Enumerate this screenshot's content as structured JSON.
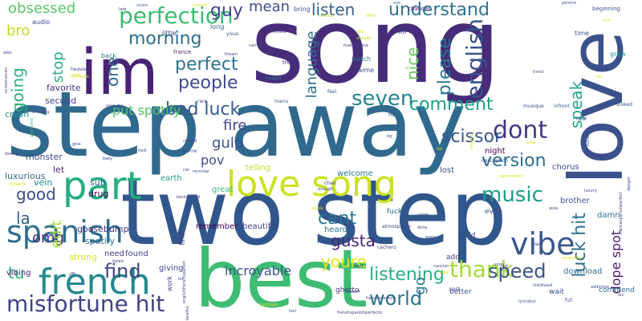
{
  "words": [
    {
      "text": "song",
      "color": "#472c7a",
      "weight": 200
    },
    {
      "text": "step away",
      "color": "#30698e",
      "weight": 150
    },
    {
      "text": "two step",
      "color": "#31568c",
      "weight": 150
    },
    {
      "text": "best",
      "color": "#3fbc73",
      "weight": 100
    },
    {
      "text": "love",
      "color": "#3b518b",
      "weight": 100
    },
    {
      "text": "im",
      "color": "#482374",
      "weight": 100
    },
    {
      "text": "love song",
      "color": "#cbe11e",
      "weight": 60
    },
    {
      "text": "part",
      "color": "#26ad81",
      "weight": 60
    },
    {
      "text": "french",
      "color": "#23888e",
      "weight": 50
    },
    {
      "text": "spanish",
      "color": "#2e6e8e",
      "weight": 45
    },
    {
      "text": "perfection",
      "color": "#3ebc74",
      "weight": 38
    },
    {
      "text": "vibe",
      "color": "#39558c",
      "weight": 42
    },
    {
      "text": "misfortune hit",
      "color": "#404387",
      "weight": 34
    },
    {
      "text": "seven",
      "color": "#24858e",
      "weight": 34
    },
    {
      "text": "dont",
      "color": "#443b84",
      "weight": 34
    },
    {
      "text": "music",
      "color": "#1e9c89",
      "weight": 30
    },
    {
      "text": "english",
      "color": "#3a538b",
      "weight": 28
    },
    {
      "text": "understand",
      "color": "#2d718e",
      "weight": 26
    },
    {
      "text": "listen",
      "color": "#35608d",
      "weight": 26
    },
    {
      "text": "bad luck",
      "color": "#365c8d",
      "weight": 28
    },
    {
      "text": "perfect",
      "color": "#2b748e",
      "weight": 26
    },
    {
      "text": "morning",
      "color": "#2d708e",
      "weight": 26
    },
    {
      "text": "people",
      "color": "#3e4989",
      "weight": 24
    },
    {
      "text": "listening",
      "color": "#29af7f",
      "weight": 26
    },
    {
      "text": "thank",
      "color": "#a2da37",
      "weight": 26
    },
    {
      "text": "world",
      "color": "#2c738e",
      "weight": 26
    },
    {
      "text": "find",
      "color": "#414487",
      "weight": 26
    },
    {
      "text": "speed",
      "color": "#3b528b",
      "weight": 26
    },
    {
      "text": "version",
      "color": "#2e6d8e",
      "weight": 24
    },
    {
      "text": "scissor",
      "color": "#38588c",
      "weight": 24
    },
    {
      "text": "comment",
      "color": "#1f9e89",
      "weight": 20
    },
    {
      "text": "please",
      "color": "#2a768e",
      "weight": 26
    },
    {
      "text": "luck hit",
      "color": "#2e6f8e",
      "weight": 24
    },
    {
      "text": "speak",
      "color": "#20a486",
      "weight": 20
    },
    {
      "text": "mean",
      "color": "#3c4f8a",
      "weight": 22
    },
    {
      "text": "guy",
      "color": "#3f4788",
      "weight": 22
    },
    {
      "text": "obsessed",
      "color": "#58c765",
      "weight": 20
    },
    {
      "text": "bro",
      "color": "#bddf26",
      "weight": 20
    },
    {
      "text": "going",
      "color": "#2ab07f",
      "weight": 22
    },
    {
      "text": "one",
      "color": "#31688e",
      "weight": 22
    },
    {
      "text": "stop",
      "color": "#2ab07f",
      "weight": 20
    },
    {
      "text": "nice",
      "color": "#6ccd5a",
      "weight": 22
    },
    {
      "text": "language",
      "color": "#2e6e8e",
      "weight": 18
    },
    {
      "text": "cant",
      "color": "#2a788e",
      "weight": 22
    },
    {
      "text": "gusta",
      "color": "#482677",
      "weight": 22
    },
    {
      "text": "youre",
      "color": "#e5e419",
      "weight": 22
    },
    {
      "text": "fire",
      "color": "#3e4a89",
      "weight": 20
    },
    {
      "text": "gulp",
      "color": "#3b518b",
      "weight": 20
    },
    {
      "text": "good",
      "color": "#3c4f8a",
      "weight": 20
    },
    {
      "text": "la",
      "color": "#355f8d",
      "weight": 20
    },
    {
      "text": "omg",
      "color": "#472d7b",
      "weight": 20
    },
    {
      "text": "tu",
      "color": "#2db27d",
      "weight": 22
    },
    {
      "text": "edit",
      "color": "#a5db36",
      "weight": 18
    },
    {
      "text": "pov",
      "color": "#3d4d8a",
      "weight": 18
    },
    {
      "text": "put spotify",
      "color": "#52c569",
      "weight": 16
    },
    {
      "text": "incroyable",
      "color": "#3b528b",
      "weight": 16
    },
    {
      "text": "dope spot",
      "color": "#481b6d",
      "weight": 16
    },
    {
      "text": "go",
      "color": "#2a788e",
      "weight": 18
    },
    {
      "text": "sub",
      "color": "#33638d",
      "weight": 11
    },
    {
      "text": "drug",
      "color": "#440154",
      "weight": 11
    },
    {
      "text": "favorite",
      "color": "#46327e",
      "weight": 11
    },
    {
      "text": "second",
      "color": "#414487",
      "weight": 11
    },
    {
      "text": "crush",
      "color": "#20938c",
      "weight": 11
    },
    {
      "text": "monster",
      "color": "#3f4889",
      "weight": 11
    },
    {
      "text": "let",
      "color": "#482878",
      "weight": 11
    },
    {
      "text": "vein",
      "color": "#238a8d",
      "weight": 11
    },
    {
      "text": "luxurious",
      "color": "#31678e",
      "weight": 11
    },
    {
      "text": "goosebump",
      "color": "#453581",
      "weight": 11
    },
    {
      "text": "spotify",
      "color": "#2d708e",
      "weight": 11
    },
    {
      "text": "strong",
      "color": "#d8e219",
      "weight": 11
    },
    {
      "text": "need",
      "color": "#453781",
      "weight": 10
    },
    {
      "text": "found",
      "color": "#414487",
      "weight": 10
    },
    {
      "text": "giving",
      "color": "#3f4788",
      "weight": 10
    },
    {
      "text": "vibing",
      "color": "#482576",
      "weight": 10
    },
    {
      "text": "earth",
      "color": "#1e9b8a",
      "weight": 10
    },
    {
      "text": "great",
      "color": "#35b779",
      "weight": 10
    },
    {
      "text": "remember",
      "color": "#440154",
      "weight": 10
    },
    {
      "text": "beautiful",
      "color": "#404387",
      "weight": 10
    },
    {
      "text": "heard",
      "color": "#2c718e",
      "weight": 10
    },
    {
      "text": "telling",
      "color": "#b5de2b",
      "weight": 10
    },
    {
      "text": "welcome",
      "color": "#2a788e",
      "weight": 10
    },
    {
      "text": "lost",
      "color": "#3b528b",
      "weight": 10
    },
    {
      "text": "night",
      "color": "#440154",
      "weight": 10
    },
    {
      "text": "chorus",
      "color": "#3e4989",
      "weight": 10
    },
    {
      "text": "brother",
      "color": "#39568c",
      "weight": 10
    },
    {
      "text": "damn",
      "color": "#2e6e8e",
      "weight": 10
    },
    {
      "text": "download",
      "color": "#30698e",
      "weight": 10
    },
    {
      "text": "commend",
      "color": "#2c728e",
      "weight": 9
    },
    {
      "text": "wait",
      "color": "#3e4989",
      "weight": 9
    },
    {
      "text": "better",
      "color": "#3b528b",
      "weight": 9
    },
    {
      "text": "fuck",
      "color": "#2a778e",
      "weight": 9
    },
    {
      "text": "sold",
      "color": "#3d4e8a",
      "weight": 9
    },
    {
      "text": "add",
      "color": "#433e85",
      "weight": 9
    },
    {
      "text": "even",
      "color": "#3c508b",
      "weight": 9
    },
    {
      "text": "ghetto",
      "color": "#46307e",
      "weight": 9
    },
    {
      "text": "link",
      "color": "#443a83",
      "weight": 9
    },
    {
      "text": "work",
      "color": "#433d84",
      "weight": 8
    },
    {
      "text": "time",
      "color": "#3b528b",
      "weight": 8
    },
    {
      "text": "grew",
      "color": "#218f8d",
      "weight": 8
    },
    {
      "text": "long",
      "color": "#33638d",
      "weight": 8
    },
    {
      "text": "audio",
      "color": "#404688",
      "weight": 8
    },
    {
      "text": "little",
      "color": "#3f4889",
      "weight": 8
    },
    {
      "text": "back",
      "color": "#2b748e",
      "weight": 8
    },
    {
      "text": "bring",
      "color": "#39558c",
      "weight": 8
    },
    {
      "text": "team",
      "color": "#2d708e",
      "weight": 8
    },
    {
      "text": "watch",
      "color": "#2d708e",
      "weight": 8
    },
    {
      "text": "jaime",
      "color": "#3e4989",
      "weight": 8
    },
    {
      "text": "channel",
      "color": "#472a7a",
      "weight": 7
    },
    {
      "text": "beginning",
      "color": "#3d4d8a",
      "weight": 7
    },
    {
      "text": "france",
      "color": "#482173",
      "weight": 7
    },
    {
      "text": "trop",
      "color": "#443983",
      "weight": 7
    },
    {
      "text": "hour",
      "color": "#31688e",
      "weight": 7
    },
    {
      "text": "tune",
      "color": "#3e4989",
      "weight": 6
    },
    {
      "text": "hear",
      "color": "#3f4788",
      "weight": 6
    },
    {
      "text": "stoked",
      "color": "#3d4e8a",
      "weight": 6
    },
    {
      "text": "infront",
      "color": "#3a548c",
      "weight": 6
    },
    {
      "text": "poeple",
      "color": "#414487",
      "weight": 6
    },
    {
      "text": "musique",
      "color": "#3b528b",
      "weight": 6
    },
    {
      "text": "minute",
      "color": "#3e4a89",
      "weight": 6
    },
    {
      "text": "rare",
      "color": "#3e4989",
      "weight": 6
    },
    {
      "text": "manu",
      "color": "#3a548c",
      "weight": 6
    },
    {
      "text": "feel",
      "color": "#39568c",
      "weight": 6
    },
    {
      "text": "yisus",
      "color": "#3b528b",
      "weight": 6
    },
    {
      "text": "carried",
      "color": "#3e4989",
      "weight": 5
    },
    {
      "text": "theam",
      "color": "#424086",
      "weight": 5
    },
    {
      "text": "reverb",
      "color": "#414487",
      "weight": 5
    },
    {
      "text": "melting",
      "color": "#b8de29",
      "weight": 5
    },
    {
      "text": "killer",
      "color": "#d0e11c",
      "weight": 5
    },
    {
      "text": "eye",
      "color": "#2a778e",
      "weight": 5
    },
    {
      "text": "still",
      "color": "#3e4989",
      "weight": 6
    },
    {
      "text": "already",
      "color": "#b8de29",
      "weight": 5
    },
    {
      "text": "masterpiece",
      "color": "#424086",
      "weight": 5
    },
    {
      "text": "god",
      "color": "#dde318",
      "weight": 5
    },
    {
      "text": "late",
      "color": "#424086",
      "weight": 5
    },
    {
      "text": "scisor",
      "color": "#39568c",
      "weight": 5
    },
    {
      "text": "coment",
      "color": "#dde318",
      "weight": 5
    },
    {
      "text": "pereira",
      "color": "#3b528b",
      "weight": 5
    },
    {
      "text": "alex",
      "color": "#3e4989",
      "weight": 5
    },
    {
      "text": "chill",
      "color": "#dde318",
      "weight": 5
    },
    {
      "text": "heaven",
      "color": "#3e4989",
      "weight": 6
    },
    {
      "text": "amazing",
      "color": "#414487",
      "weight": 5
    },
    {
      "text": "scissorseven",
      "color": "#414487",
      "weight": 5
    },
    {
      "text": "awesome",
      "color": "#35b779",
      "weight": 5
    },
    {
      "text": "someone",
      "color": "#dde318",
      "weight": 5
    },
    {
      "text": "trend",
      "color": "#3b528b",
      "weight": 5
    },
    {
      "text": "am",
      "color": "#dde318",
      "weight": 5
    },
    {
      "text": "live",
      "color": "#dde318",
      "weight": 5
    },
    {
      "text": "luxury",
      "color": "#414487",
      "weight": 5
    },
    {
      "text": "danger",
      "color": "#3e4989",
      "weight": 5
    },
    {
      "text": "francespanishperfect",
      "color": "#414487",
      "weight": 5
    },
    {
      "text": "wow",
      "color": "#dde318",
      "weight": 5
    },
    {
      "text": "took",
      "color": "#3b528b",
      "weight": 5
    },
    {
      "text": "baby",
      "color": "#414487",
      "weight": 5
    },
    {
      "text": "give",
      "color": "#3e4989",
      "weight": 5
    },
    {
      "text": "dawng",
      "color": "#414487",
      "weight": 5
    },
    {
      "text": "straight",
      "color": "#dde318",
      "weight": 5
    },
    {
      "text": "dftme",
      "color": "#3b528b",
      "weight": 6
    },
    {
      "text": "slowed",
      "color": "#414487",
      "weight": 5
    },
    {
      "text": "car",
      "color": "#3e4989",
      "weight": 5
    },
    {
      "text": "recordar",
      "color": "#3b528b",
      "weight": 5
    },
    {
      "text": "chao",
      "color": "#3e4989",
      "weight": 6
    },
    {
      "text": "enough",
      "color": "#3b528b",
      "weight": 5
    },
    {
      "text": "background",
      "color": "#414487",
      "weight": 5
    },
    {
      "text": "bg",
      "color": "#3b528b",
      "weight": 5
    },
    {
      "text": "iso",
      "color": "#dde318",
      "weight": 5
    },
    {
      "text": "couldnt",
      "color": "#dde318",
      "weight": 5
    },
    {
      "text": "description",
      "color": "#3b528b",
      "weight": 6
    },
    {
      "text": "damnspeed",
      "color": "#dde318",
      "weight": 5
    },
    {
      "text": "wow",
      "color": "#414487",
      "weight": 5
    },
    {
      "text": "whole",
      "color": "#dde318",
      "weight": 5
    },
    {
      "text": "atmosphere",
      "color": "#3e4989",
      "weight": 6
    },
    {
      "text": "came",
      "color": "#3e4989",
      "weight": 5
    },
    {
      "text": "want",
      "color": "#3b528b",
      "weight": 5
    },
    {
      "text": "done",
      "color": "#414487",
      "weight": 5
    },
    {
      "text": "esta",
      "color": "#dde318",
      "weight": 5
    },
    {
      "text": "cachero",
      "color": "#3e4989",
      "weight": 6
    },
    {
      "text": "word",
      "color": "#3b528b",
      "weight": 5
    },
    {
      "text": "cancion",
      "color": "#3e4989",
      "weight": 5
    },
    {
      "text": "sorry",
      "color": "#3b528b",
      "weight": 5
    },
    {
      "text": "last",
      "color": "#414487",
      "weight": 5
    },
    {
      "text": "childhood",
      "color": "#3e4989",
      "weight": 5
    },
    {
      "text": "full",
      "color": "#3b528b",
      "weight": 6
    },
    {
      "text": "earphone",
      "color": "#dde318",
      "weight": 5
    },
    {
      "text": "addictive",
      "color": "#3e4989",
      "weight": 5
    },
    {
      "text": "bad",
      "color": "#3e4989",
      "weight": 6
    },
    {
      "text": "past",
      "color": "#414487",
      "weight": 6
    },
    {
      "text": "doesnt",
      "color": "#3e4989",
      "weight": 5
    },
    {
      "text": "lyricsbut",
      "color": "#3b528b",
      "weight": 5
    },
    {
      "text": "frenshspanish",
      "color": "#3e4989",
      "weight": 5
    },
    {
      "text": "hon",
      "color": "#3b528b",
      "weight": 5
    },
    {
      "text": "frenshspanishperfecto",
      "color": "#414487",
      "weight": 5
    },
    {
      "text": "englishfrenchspanish",
      "color": "#3e4989",
      "weight": 5
    },
    {
      "text": "beatful",
      "color": "#414487",
      "weight": 5
    },
    {
      "text": "dft",
      "color": "#3e4989",
      "weight": 6
    },
    {
      "text": "failed",
      "color": "#3b528b",
      "weight": 5
    },
    {
      "text": "lot",
      "color": "#3e4989",
      "weight": 5
    },
    {
      "text": "gyubwan",
      "color": "#dde318",
      "weight": 5
    },
    {
      "text": "ols",
      "color": "#3e4989",
      "weight": 5
    }
  ]
}
